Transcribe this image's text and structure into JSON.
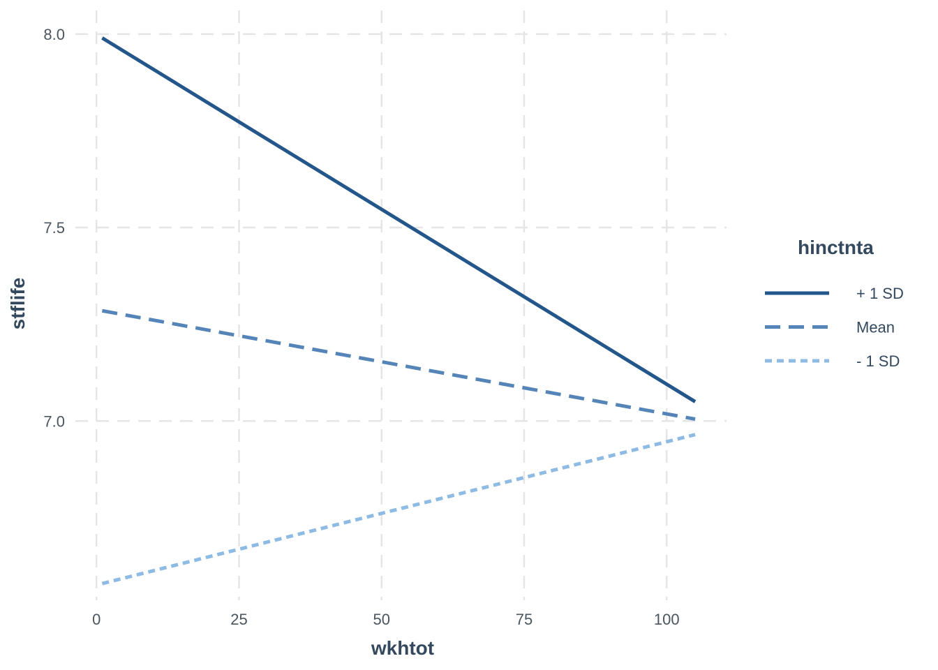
{
  "chart_data": {
    "type": "line",
    "title": "",
    "xlabel": "wkhtot",
    "ylabel": "stflife",
    "xlim": [
      -3.7,
      110.5
    ],
    "ylim": [
      6.537,
      8.061
    ],
    "x_ticks": [
      0,
      25,
      50,
      75,
      100
    ],
    "y_ticks": [
      7.0,
      7.5,
      8.0
    ],
    "x_tick_labels": [
      "0",
      "25",
      "50",
      "75",
      "100"
    ],
    "y_tick_labels": [
      "7.0",
      "7.5",
      "8.0"
    ],
    "grid": true,
    "legend": {
      "title": "hinctnta",
      "position": "right"
    },
    "series": [
      {
        "name": "+ 1 SD",
        "x": [
          1,
          105
        ],
        "y": [
          7.99,
          7.05
        ],
        "color": "#23568a",
        "dash": "solid"
      },
      {
        "name": "Mean",
        "x": [
          1,
          105
        ],
        "y": [
          7.285,
          7.005
        ],
        "color": "#5585b8",
        "dash": "dashed"
      },
      {
        "name": "- 1 SD",
        "x": [
          1,
          105
        ],
        "y": [
          6.58,
          6.965
        ],
        "color": "#8dbbe4",
        "dash": "dotted"
      }
    ]
  }
}
